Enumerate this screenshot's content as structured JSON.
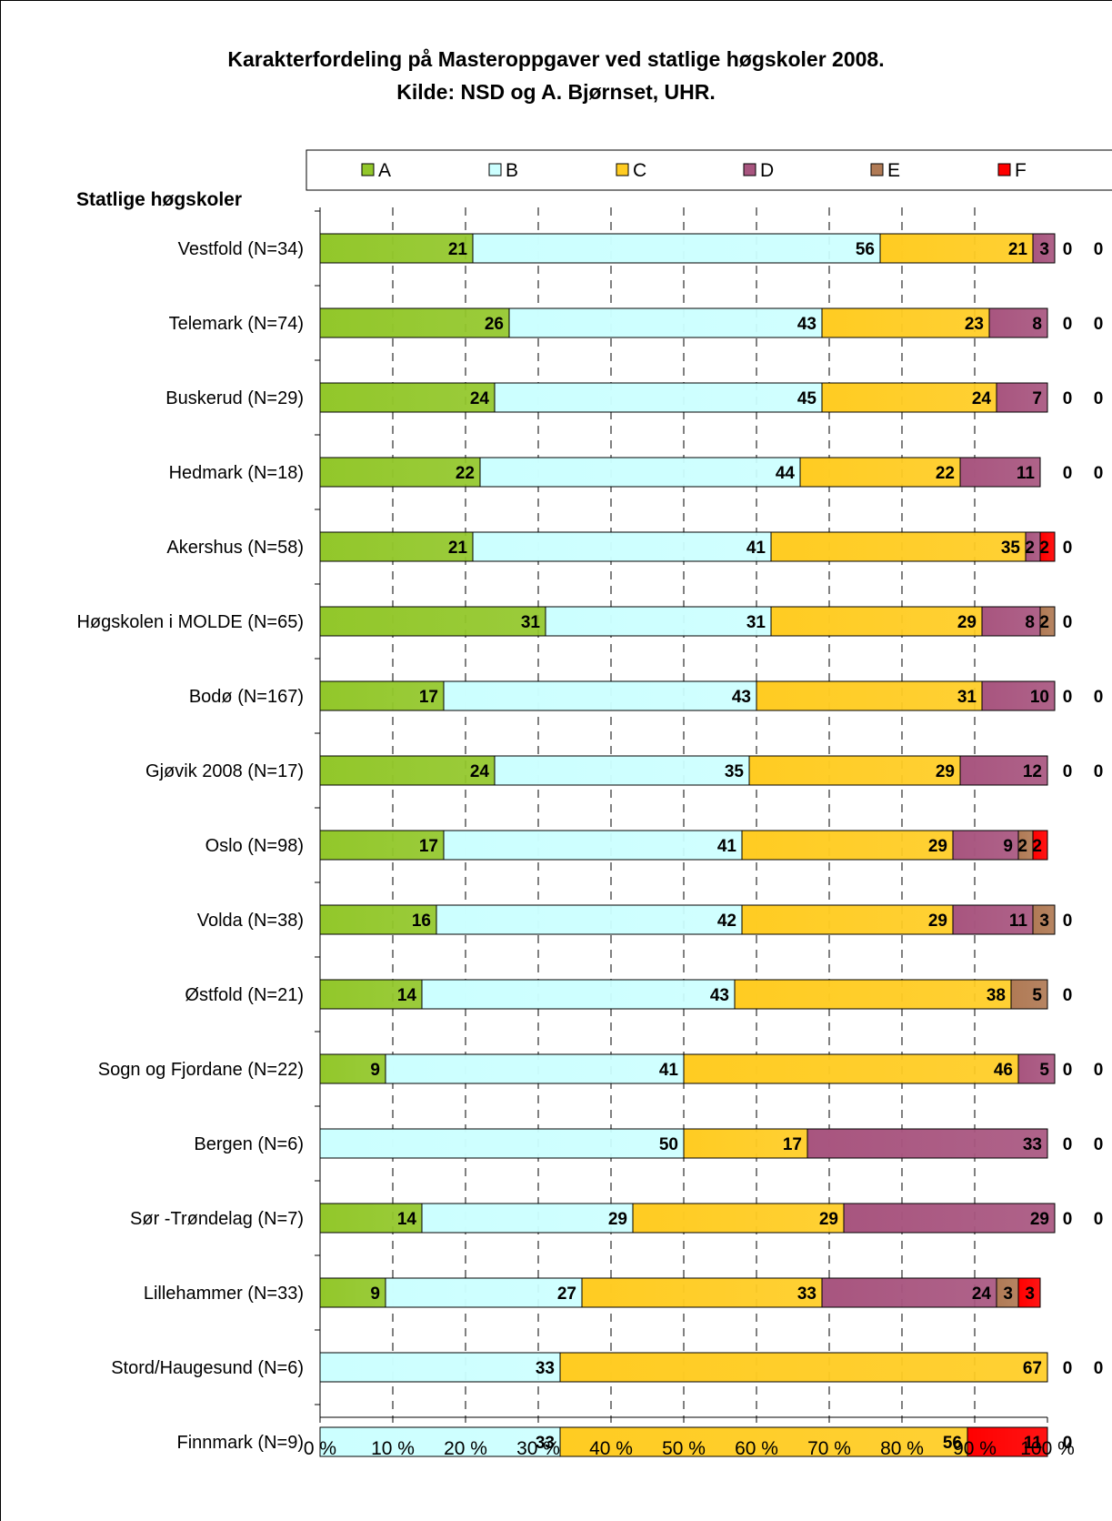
{
  "chart_data": {
    "type": "bar",
    "orientation": "horizontal",
    "stacked": "percent",
    "title": "Karakterfordeling på Masteroppgaver ved statlige høgskoler 2008.",
    "subtitle": "Kilde: NSD og  A. Bjørnset, UHR.",
    "ylabel": "Statlige høgskoler",
    "xlim": [
      0,
      100
    ],
    "x_ticks": [
      "0 %",
      "10 %",
      "20 %",
      "30 %",
      "40 %",
      "50 %",
      "60 %",
      "70 %",
      "80 %",
      "90 %",
      "100 %"
    ],
    "grid": "vertical dashed",
    "legend_position": "top",
    "categories": [
      "Vestfold (N=34)",
      "Telemark (N=74)",
      "Buskerud (N=29)",
      "Hedmark (N=18)",
      "Akershus (N=58)",
      "Høgskolen i MOLDE (N=65)",
      "Bodø (N=167)",
      "Gjøvik 2008 (N=17)",
      "Oslo  (N=98)",
      "Volda (N=38)",
      "Østfold (N=21)",
      "Sogn og Fjordane (N=22)",
      "Bergen (N=6)",
      "Sør -Trøndelag (N=7)",
      "Lillehammer (N=33)",
      "Stord/Haugesund (N=6)",
      "Finnmark (N=9)"
    ],
    "series": [
      {
        "name": "A",
        "color": "#92C72A",
        "values": [
          21,
          26,
          24,
          22,
          21,
          31,
          17,
          24,
          17,
          16,
          14,
          9,
          0,
          14,
          9,
          0,
          0
        ]
      },
      {
        "name": "B",
        "color": "#CCFFFF",
        "values": [
          56,
          43,
          45,
          44,
          41,
          31,
          43,
          35,
          41,
          42,
          43,
          41,
          50,
          29,
          27,
          33,
          33
        ]
      },
      {
        "name": "C",
        "color": "#FFCC22",
        "values": [
          21,
          23,
          24,
          22,
          35,
          29,
          31,
          29,
          29,
          29,
          38,
          46,
          17,
          29,
          33,
          67,
          56
        ]
      },
      {
        "name": "D",
        "color": "#A8557F",
        "values": [
          3,
          8,
          7,
          11,
          2,
          8,
          10,
          12,
          9,
          11,
          0,
          5,
          33,
          29,
          24,
          0,
          0
        ]
      },
      {
        "name": "E",
        "color": "#B07A55",
        "values": [
          0,
          0,
          0,
          0,
          0,
          2,
          0,
          0,
          2,
          3,
          5,
          0,
          0,
          0,
          3,
          0,
          0
        ]
      },
      {
        "name": "F",
        "color": "#FF0000",
        "values": [
          0,
          0,
          0,
          0,
          2,
          0,
          0,
          0,
          2,
          0,
          0,
          0,
          0,
          0,
          3,
          0,
          11
        ]
      }
    ]
  }
}
